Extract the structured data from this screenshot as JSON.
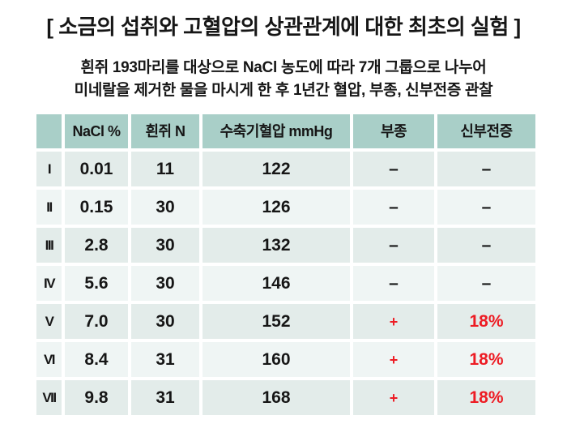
{
  "title": "[ 소금의 섭취와 고혈압의 상관관계에 대한 최초의 실험 ]",
  "subtitle": {
    "line1": "흰쥐 193마리를 대상으로  NaCl 농도에 따라 7개 그룹으로 나누어",
    "line2": "미네랄을 제거한 물을 마시게 한 후 1년간 혈압, 부종, 신부전증 관찰"
  },
  "chart_data": {
    "type": "table",
    "title": "소금의 섭취와 고혈압의 상관관계에 대한 최초의 실험",
    "columns": [
      "",
      "NaCl %",
      "흰쥐 N",
      "수축기혈압 mmHg",
      "부종",
      "신부전증"
    ],
    "rows": [
      {
        "cells": [
          "I",
          "0.01",
          "11",
          "122",
          "–",
          "–"
        ],
        "red_cells": []
      },
      {
        "cells": [
          "II",
          "0.15",
          "30",
          "126",
          "–",
          "–"
        ],
        "red_cells": []
      },
      {
        "cells": [
          "III",
          "2.8",
          "30",
          "132",
          "–",
          "–"
        ],
        "red_cells": []
      },
      {
        "cells": [
          "IV",
          "5.6",
          "30",
          "146",
          "–",
          "–"
        ],
        "red_cells": []
      },
      {
        "cells": [
          "V",
          "7.0",
          "30",
          "152",
          "+",
          "18%"
        ],
        "red_cells": [
          4,
          5
        ]
      },
      {
        "cells": [
          "VI",
          "8.4",
          "31",
          "160",
          "+",
          "18%"
        ],
        "red_cells": [
          4,
          5
        ]
      },
      {
        "cells": [
          "VII",
          "9.8",
          "31",
          "168",
          "+",
          "18%"
        ],
        "red_cells": [
          4,
          5
        ]
      }
    ],
    "total_rats": "193",
    "group_count": "7"
  },
  "colors": {
    "header_bg": "#a9cfc8",
    "row_band_dark": "#e3ecea",
    "row_band_light": "#eff5f4",
    "text": "#161616",
    "alert_red": "#ed1c24"
  }
}
